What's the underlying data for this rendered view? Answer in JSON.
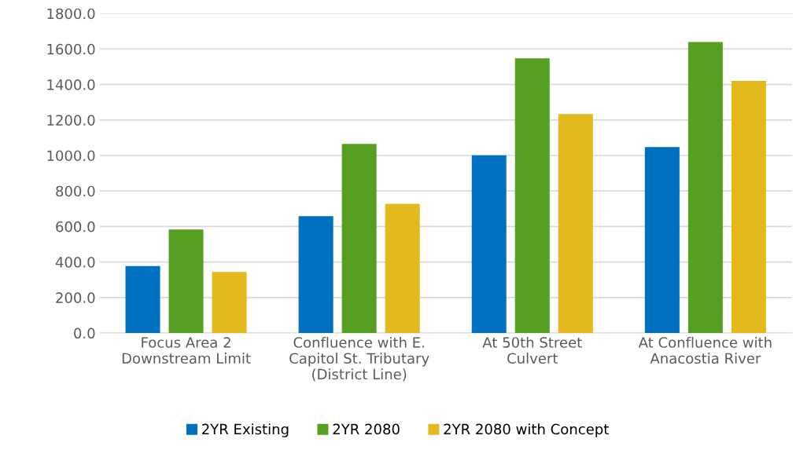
{
  "chart_data": {
    "type": "bar",
    "categories": [
      "Focus Area 2\nDownstream Limit",
      "Confluence with E.\nCapitol St. Tributary\n(District Line)",
      "At 50th Street\nCulvert",
      "At Confluence with\nAnacostia River"
    ],
    "series": [
      {
        "name": "2YR Existing",
        "color": "#0070c0",
        "values": [
          377,
          658,
          1001,
          1048
        ]
      },
      {
        "name": "2YR 2080",
        "color": "#55a022",
        "values": [
          583,
          1065,
          1548,
          1639
        ]
      },
      {
        "name": "2YR 2080 with Concept",
        "color": "#e3b91e",
        "values": [
          344,
          728,
          1233,
          1420
        ]
      }
    ],
    "ylim": [
      0,
      1800
    ],
    "yticks": [
      {
        "value": 0,
        "label": "0.0"
      },
      {
        "value": 200,
        "label": "200.0"
      },
      {
        "value": 400,
        "label": "400.0"
      },
      {
        "value": 600,
        "label": "600.0"
      },
      {
        "value": 800,
        "label": "800.0"
      },
      {
        "value": 1000,
        "label": "1000.0"
      },
      {
        "value": 1200,
        "label": "1200.0"
      },
      {
        "value": 1400,
        "label": "1400.0"
      },
      {
        "value": 1600,
        "label": "1600.0"
      },
      {
        "value": 1800,
        "label": "1800.0"
      }
    ],
    "grid": "y",
    "legend": "bottom"
  }
}
